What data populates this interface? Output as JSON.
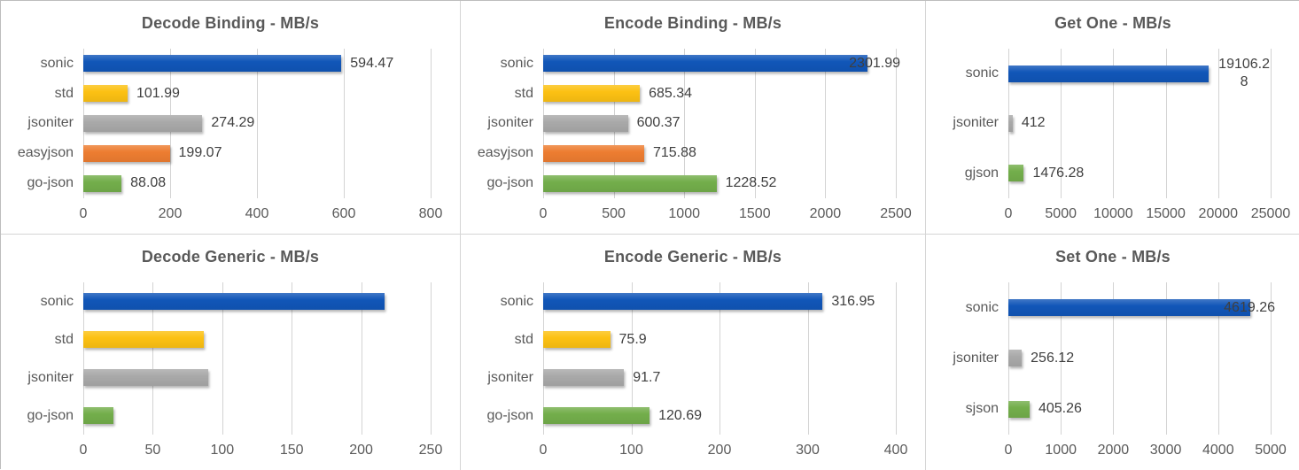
{
  "palette": {
    "blue": "#1156b8",
    "yellow": "#fcc113",
    "gray": "#a9a9a9",
    "orange": "#ed7d31",
    "green": "#73ae4b"
  },
  "styles": {
    "grid_color": "#d3d3d3",
    "title_color": "#595959",
    "axis_text_color": "#595959",
    "value_text_color": "#3f3f3f",
    "panel_border_color": "#d5d5d5",
    "background": "#ffffff"
  },
  "chart_data": [
    {
      "id": "decode-binding",
      "type": "bar",
      "orientation": "horizontal",
      "title": "Decode Binding - MB/s",
      "xlim": [
        0,
        800
      ],
      "xticks": [
        0,
        200,
        400,
        600,
        800
      ],
      "grid": true,
      "legend": false,
      "value_labels_shown": true,
      "bars": [
        {
          "category": "sonic",
          "value": 594.47,
          "label": "594.47",
          "color_key": "blue"
        },
        {
          "category": "std",
          "value": 101.99,
          "label": "101.99",
          "color_key": "yellow"
        },
        {
          "category": "jsoniter",
          "value": 274.29,
          "label": "274.29",
          "color_key": "gray"
        },
        {
          "category": "easyjson",
          "value": 199.07,
          "label": "199.07",
          "color_key": "orange"
        },
        {
          "category": "go-json",
          "value": 88.08,
          "label": "88.08",
          "color_key": "green"
        }
      ]
    },
    {
      "id": "encode-binding",
      "type": "bar",
      "orientation": "horizontal",
      "title": "Encode Binding - MB/s",
      "xlim": [
        0,
        2500
      ],
      "xticks": [
        0,
        500,
        1000,
        1500,
        2000,
        2500
      ],
      "grid": true,
      "legend": false,
      "value_labels_shown": true,
      "bars": [
        {
          "category": "sonic",
          "value": 2301.99,
          "label": "2301.99",
          "color_key": "blue"
        },
        {
          "category": "std",
          "value": 685.34,
          "label": "685.34",
          "color_key": "yellow"
        },
        {
          "category": "jsoniter",
          "value": 600.37,
          "label": "600.37",
          "color_key": "gray"
        },
        {
          "category": "easyjson",
          "value": 715.88,
          "label": "715.88",
          "color_key": "orange"
        },
        {
          "category": "go-json",
          "value": 1228.52,
          "label": "1228.52",
          "color_key": "green"
        }
      ]
    },
    {
      "id": "get-one",
      "type": "bar",
      "orientation": "horizontal",
      "title": "Get One - MB/s",
      "xlim": [
        0,
        25000
      ],
      "xticks": [
        0,
        5000,
        10000,
        15000,
        20000,
        25000
      ],
      "grid": true,
      "legend": false,
      "value_labels_shown": true,
      "bars": [
        {
          "category": "sonic",
          "value": 19106.28,
          "label": "19106.28",
          "color_key": "blue"
        },
        {
          "category": "jsoniter",
          "value": 412,
          "label": "412",
          "color_key": "gray"
        },
        {
          "category": "gjson",
          "value": 1476.28,
          "label": "1476.28",
          "color_key": "green"
        }
      ]
    },
    {
      "id": "decode-generic",
      "type": "bar",
      "orientation": "horizontal",
      "title": "Decode Generic - MB/s",
      "xlim": [
        0,
        250
      ],
      "xticks": [
        0,
        50,
        100,
        150,
        200,
        250
      ],
      "grid": true,
      "legend": false,
      "value_labels_shown": false,
      "bars": [
        {
          "category": "sonic",
          "value": 217,
          "color_key": "blue"
        },
        {
          "category": "std",
          "value": 87,
          "color_key": "yellow"
        },
        {
          "category": "jsoniter",
          "value": 90,
          "color_key": "gray"
        },
        {
          "category": "go-json",
          "value": 22,
          "color_key": "green"
        }
      ]
    },
    {
      "id": "encode-generic",
      "type": "bar",
      "orientation": "horizontal",
      "title": "Encode Generic - MB/s",
      "xlim": [
        0,
        400
      ],
      "xticks": [
        0,
        100,
        200,
        300,
        400
      ],
      "grid": true,
      "legend": false,
      "value_labels_shown": true,
      "bars": [
        {
          "category": "sonic",
          "value": 316.95,
          "label": "316.95",
          "color_key": "blue"
        },
        {
          "category": "std",
          "value": 75.9,
          "label": "75.9",
          "color_key": "yellow"
        },
        {
          "category": "jsoniter",
          "value": 91.7,
          "label": "91.7",
          "color_key": "gray"
        },
        {
          "category": "go-json",
          "value": 120.69,
          "label": "120.69",
          "color_key": "green"
        }
      ]
    },
    {
      "id": "set-one",
      "type": "bar",
      "orientation": "horizontal",
      "title": "Set One - MB/s",
      "xlim": [
        0,
        5000
      ],
      "xticks": [
        0,
        1000,
        2000,
        3000,
        4000,
        5000
      ],
      "grid": true,
      "legend": false,
      "value_labels_shown": true,
      "bars": [
        {
          "category": "sonic",
          "value": 4619.26,
          "label": "4619.26",
          "color_key": "blue"
        },
        {
          "category": "jsoniter",
          "value": 256.12,
          "label": "256.12",
          "color_key": "gray"
        },
        {
          "category": "sjson",
          "value": 405.26,
          "label": "405.26",
          "color_key": "green"
        }
      ]
    }
  ]
}
